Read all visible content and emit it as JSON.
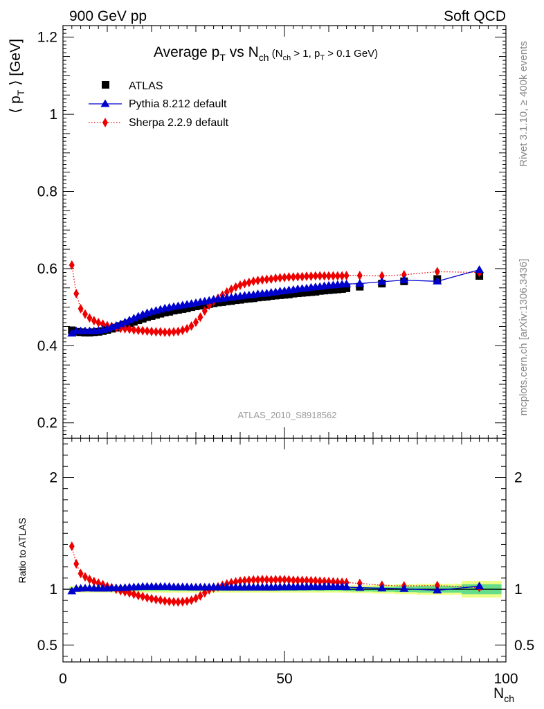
{
  "header": {
    "energy_label": "900 GeV pp",
    "process_label": "Soft QCD"
  },
  "side_labels": {
    "rivet": "Rivet 3.1.10, ≥ 400k events",
    "mcplots": "mcplots.cern.ch [arXiv:1306.3436]"
  },
  "analysis_id": "ATLAS_2010_S8918562",
  "chart_data": [
    {
      "type": "scatter",
      "panel": "main",
      "title_parts": {
        "t1": "Average p",
        "t1_sub": "T",
        "t2": " vs N",
        "t2_sub": "ch",
        "t3": " (N",
        "t3_sub": "ch",
        "t4": " > 1, p",
        "t4_sub": "T",
        "t5": " > 0.1 GeV)"
      },
      "ylabel_parts": {
        "open": "⟨ p",
        "sub": "T",
        "close": " ⟩ [GeV]"
      },
      "xlim": [
        0,
        100
      ],
      "ylim": [
        0.16,
        1.23
      ],
      "yticks": [
        0.2,
        0.4,
        0.6,
        0.8,
        1,
        1.2
      ],
      "ytick_labels": [
        "0.2",
        "0.4",
        "0.6",
        "0.8",
        "1",
        "1.2"
      ],
      "legend_position": "top-left",
      "series": [
        {
          "name": "ATLAS",
          "marker": "square",
          "color": "#000000",
          "line": "none",
          "x": [
            2,
            3,
            4,
            5,
            6,
            7,
            8,
            9,
            10,
            11,
            12,
            13,
            14,
            15,
            16,
            17,
            18,
            19,
            20,
            21,
            22,
            23,
            24,
            25,
            26,
            27,
            28,
            29,
            30,
            31,
            32,
            33,
            34,
            35,
            36,
            37,
            38,
            39,
            40,
            41,
            42,
            43,
            44,
            45,
            46,
            47,
            48,
            49,
            50,
            51,
            52,
            53,
            54,
            55,
            56,
            57,
            58,
            59,
            60,
            61,
            62,
            63,
            64,
            67,
            72,
            77,
            84.5,
            94
          ],
          "y": [
            0.44,
            0.436,
            0.435,
            0.434,
            0.434,
            0.435,
            0.436,
            0.438,
            0.441,
            0.444,
            0.447,
            0.451,
            0.455,
            0.458,
            0.462,
            0.466,
            0.47,
            0.474,
            0.477,
            0.48,
            0.483,
            0.486,
            0.488,
            0.491,
            0.493,
            0.495,
            0.497,
            0.5,
            0.502,
            0.504,
            0.506,
            0.508,
            0.51,
            0.512,
            0.513,
            0.515,
            0.516,
            0.518,
            0.519,
            0.521,
            0.522,
            0.523,
            0.525,
            0.526,
            0.527,
            0.529,
            0.53,
            0.531,
            0.532,
            0.533,
            0.535,
            0.536,
            0.537,
            0.538,
            0.539,
            0.54,
            0.542,
            0.543,
            0.544,
            0.545,
            0.546,
            0.547,
            0.549,
            0.553,
            0.561,
            0.567,
            0.573,
            0.581
          ]
        },
        {
          "name": "Pythia 8.212 default",
          "marker": "triangle",
          "color": "#0000cc",
          "line": "solid",
          "x": [
            2,
            3,
            4,
            5,
            6,
            7,
            8,
            9,
            10,
            11,
            12,
            13,
            14,
            15,
            16,
            17,
            18,
            19,
            20,
            21,
            22,
            23,
            24,
            25,
            26,
            27,
            28,
            29,
            30,
            31,
            32,
            33,
            34,
            35,
            36,
            37,
            38,
            39,
            40,
            41,
            42,
            43,
            44,
            45,
            46,
            47,
            48,
            49,
            50,
            51,
            52,
            53,
            54,
            55,
            56,
            57,
            58,
            59,
            60,
            61,
            62,
            63,
            64,
            67,
            72,
            77,
            84.5,
            94
          ],
          "y": [
            0.432,
            0.438,
            0.438,
            0.438,
            0.438,
            0.438,
            0.439,
            0.441,
            0.444,
            0.448,
            0.452,
            0.456,
            0.461,
            0.466,
            0.471,
            0.476,
            0.481,
            0.485,
            0.488,
            0.491,
            0.494,
            0.497,
            0.499,
            0.501,
            0.503,
            0.505,
            0.507,
            0.509,
            0.511,
            0.513,
            0.515,
            0.517,
            0.52,
            0.521,
            0.522,
            0.524,
            0.525,
            0.527,
            0.528,
            0.53,
            0.531,
            0.532,
            0.534,
            0.535,
            0.536,
            0.538,
            0.539,
            0.541,
            0.542,
            0.544,
            0.545,
            0.547,
            0.548,
            0.549,
            0.551,
            0.552,
            0.553,
            0.555,
            0.556,
            0.557,
            0.558,
            0.559,
            0.56,
            0.561,
            0.566,
            0.57,
            0.567,
            0.597
          ]
        },
        {
          "name": "Sherpa 2.2.9 default",
          "marker": "diamond",
          "color": "#ee0000",
          "line": "dotted",
          "x": [
            2,
            3,
            4,
            5,
            6,
            7,
            8,
            9,
            10,
            11,
            12,
            13,
            14,
            15,
            16,
            17,
            18,
            19,
            20,
            21,
            22,
            23,
            24,
            25,
            26,
            27,
            28,
            29,
            30,
            31,
            32,
            33,
            34,
            35,
            36,
            37,
            38,
            39,
            40,
            41,
            42,
            43,
            44,
            45,
            46,
            47,
            48,
            49,
            50,
            51,
            52,
            53,
            54,
            55,
            56,
            57,
            58,
            59,
            60,
            61,
            62,
            63,
            64,
            67,
            72,
            77,
            84.5,
            94
          ],
          "y": [
            0.609,
            0.535,
            0.496,
            0.482,
            0.472,
            0.465,
            0.46,
            0.456,
            0.452,
            0.45,
            0.447,
            0.445,
            0.444,
            0.443,
            0.441,
            0.44,
            0.439,
            0.438,
            0.437,
            0.436,
            0.436,
            0.435,
            0.435,
            0.436,
            0.437,
            0.44,
            0.444,
            0.451,
            0.461,
            0.474,
            0.49,
            0.505,
            0.515,
            0.523,
            0.531,
            0.539,
            0.546,
            0.552,
            0.557,
            0.561,
            0.564,
            0.567,
            0.569,
            0.571,
            0.572,
            0.573,
            0.575,
            0.576,
            0.577,
            0.578,
            0.578,
            0.579,
            0.579,
            0.58,
            0.58,
            0.581,
            0.581,
            0.581,
            0.581,
            0.581,
            0.581,
            0.581,
            0.582,
            0.582,
            0.581,
            0.584,
            0.592,
            0.59
          ]
        }
      ]
    },
    {
      "type": "scatter",
      "panel": "ratio",
      "ylabel": "Ratio to ATLAS",
      "xlabel_parts": {
        "main": "N",
        "sub": "ch"
      },
      "xlim": [
        0,
        100
      ],
      "ylim": [
        0.35,
        2.35
      ],
      "yticks": [
        0.5,
        1,
        2
      ],
      "ytick_labels": [
        "0.5",
        "1",
        "2"
      ],
      "xticks": [
        0,
        50,
        100
      ],
      "xtick_labels": [
        "0",
        "50",
        "100"
      ],
      "band_colors": {
        "inner": "#66dd88",
        "outer": "#eeff88"
      },
      "band_edges": [
        1.5,
        2.5,
        3.5,
        4.5,
        5.5,
        6.5,
        7.5,
        8.5,
        9.5,
        10.5,
        11.5,
        12.5,
        13.5,
        14.5,
        15.5,
        16.5,
        17.5,
        18.5,
        19.5,
        20.5,
        21.5,
        22.5,
        23.5,
        24.5,
        25.5,
        26.5,
        27.5,
        28.5,
        29.5,
        30.5,
        31.5,
        32.5,
        33.5,
        34.5,
        35.5,
        36.5,
        37.5,
        38.5,
        39.5,
        40.5,
        41.5,
        42.5,
        43.5,
        44.5,
        45.5,
        46.5,
        47.5,
        48.5,
        49.5,
        50.5,
        51.5,
        52.5,
        53.5,
        54.5,
        55.5,
        56.5,
        57.5,
        58.5,
        59.5,
        60.5,
        61.5,
        62.5,
        63.5,
        65,
        70,
        75,
        80,
        90,
        99
      ],
      "band_inner": [
        0.015,
        0.015,
        0.015,
        0.015,
        0.015,
        0.015,
        0.015,
        0.015,
        0.015,
        0.015,
        0.015,
        0.015,
        0.015,
        0.015,
        0.015,
        0.015,
        0.015,
        0.015,
        0.015,
        0.015,
        0.015,
        0.015,
        0.015,
        0.015,
        0.015,
        0.015,
        0.015,
        0.015,
        0.015,
        0.015,
        0.015,
        0.015,
        0.015,
        0.015,
        0.015,
        0.015,
        0.015,
        0.015,
        0.015,
        0.015,
        0.015,
        0.015,
        0.015,
        0.015,
        0.015,
        0.015,
        0.015,
        0.015,
        0.015,
        0.015,
        0.015,
        0.015,
        0.015,
        0.015,
        0.015,
        0.015,
        0.015,
        0.015,
        0.015,
        0.015,
        0.015,
        0.015,
        0.018,
        0.02,
        0.022,
        0.026,
        0.03,
        0.045
      ],
      "band_outer": [
        0.03,
        0.03,
        0.03,
        0.03,
        0.03,
        0.03,
        0.03,
        0.03,
        0.03,
        0.03,
        0.03,
        0.03,
        0.03,
        0.03,
        0.03,
        0.03,
        0.03,
        0.03,
        0.03,
        0.03,
        0.03,
        0.03,
        0.03,
        0.03,
        0.03,
        0.03,
        0.03,
        0.03,
        0.03,
        0.03,
        0.03,
        0.03,
        0.03,
        0.03,
        0.03,
        0.03,
        0.03,
        0.03,
        0.03,
        0.03,
        0.03,
        0.03,
        0.03,
        0.03,
        0.03,
        0.03,
        0.03,
        0.03,
        0.03,
        0.03,
        0.03,
        0.03,
        0.03,
        0.03,
        0.03,
        0.03,
        0.03,
        0.03,
        0.03,
        0.03,
        0.03,
        0.03,
        0.032,
        0.035,
        0.04,
        0.045,
        0.05,
        0.075
      ],
      "series": [
        {
          "name": "Pythia 8.212 default",
          "marker": "triangle",
          "color": "#0000cc",
          "line": "solid",
          "x": [
            2,
            3,
            4,
            5,
            6,
            7,
            8,
            9,
            10,
            11,
            12,
            13,
            14,
            15,
            16,
            17,
            18,
            19,
            20,
            21,
            22,
            23,
            24,
            25,
            26,
            27,
            28,
            29,
            30,
            31,
            32,
            33,
            34,
            35,
            36,
            37,
            38,
            39,
            40,
            41,
            42,
            43,
            44,
            45,
            46,
            47,
            48,
            49,
            50,
            51,
            52,
            53,
            54,
            55,
            56,
            57,
            58,
            59,
            60,
            61,
            62,
            63,
            64,
            67,
            72,
            77,
            84.5,
            94
          ],
          "y": [
            0.982,
            1.005,
            1.007,
            1.009,
            1.009,
            1.007,
            1.007,
            1.007,
            1.007,
            1.009,
            1.011,
            1.011,
            1.013,
            1.017,
            1.019,
            1.021,
            1.023,
            1.024,
            1.023,
            1.023,
            1.023,
            1.023,
            1.023,
            1.02,
            1.02,
            1.02,
            1.02,
            1.018,
            1.018,
            1.018,
            1.018,
            1.018,
            1.02,
            1.018,
            1.018,
            1.017,
            1.017,
            1.017,
            1.017,
            1.017,
            1.017,
            1.017,
            1.017,
            1.017,
            1.017,
            1.017,
            1.017,
            1.019,
            1.019,
            1.021,
            1.019,
            1.021,
            1.02,
            1.02,
            1.022,
            1.022,
            1.02,
            1.022,
            1.022,
            1.022,
            1.022,
            1.022,
            1.02,
            1.014,
            1.009,
            1.005,
            0.99,
            1.028
          ]
        },
        {
          "name": "Sherpa 2.2.9 default",
          "marker": "diamond",
          "color": "#ee0000",
          "line": "dotted",
          "x": [
            2,
            3,
            4,
            5,
            6,
            7,
            8,
            9,
            10,
            11,
            12,
            13,
            14,
            15,
            16,
            17,
            18,
            19,
            20,
            21,
            22,
            23,
            24,
            25,
            26,
            27,
            28,
            29,
            30,
            31,
            32,
            33,
            34,
            35,
            36,
            37,
            38,
            39,
            40,
            41,
            42,
            43,
            44,
            45,
            46,
            47,
            48,
            49,
            50,
            51,
            52,
            53,
            54,
            55,
            56,
            57,
            58,
            59,
            60,
            61,
            62,
            63,
            64,
            67,
            72,
            77,
            84.5,
            94
          ],
          "y": [
            1.384,
            1.227,
            1.14,
            1.111,
            1.088,
            1.069,
            1.055,
            1.041,
            1.025,
            1.014,
            1,
            0.987,
            0.976,
            0.967,
            0.955,
            0.944,
            0.934,
            0.924,
            0.916,
            0.908,
            0.903,
            0.895,
            0.891,
            0.888,
            0.886,
            0.889,
            0.893,
            0.902,
            0.918,
            0.94,
            0.968,
            0.994,
            1.01,
            1.021,
            1.035,
            1.047,
            1.058,
            1.066,
            1.073,
            1.077,
            1.08,
            1.084,
            1.084,
            1.086,
            1.085,
            1.083,
            1.085,
            1.085,
            1.085,
            1.084,
            1.08,
            1.08,
            1.078,
            1.078,
            1.076,
            1.076,
            1.072,
            1.07,
            1.068,
            1.066,
            1.064,
            1.062,
            1.06,
            1.052,
            1.036,
            1.03,
            1.033,
            1.015
          ]
        }
      ]
    }
  ]
}
